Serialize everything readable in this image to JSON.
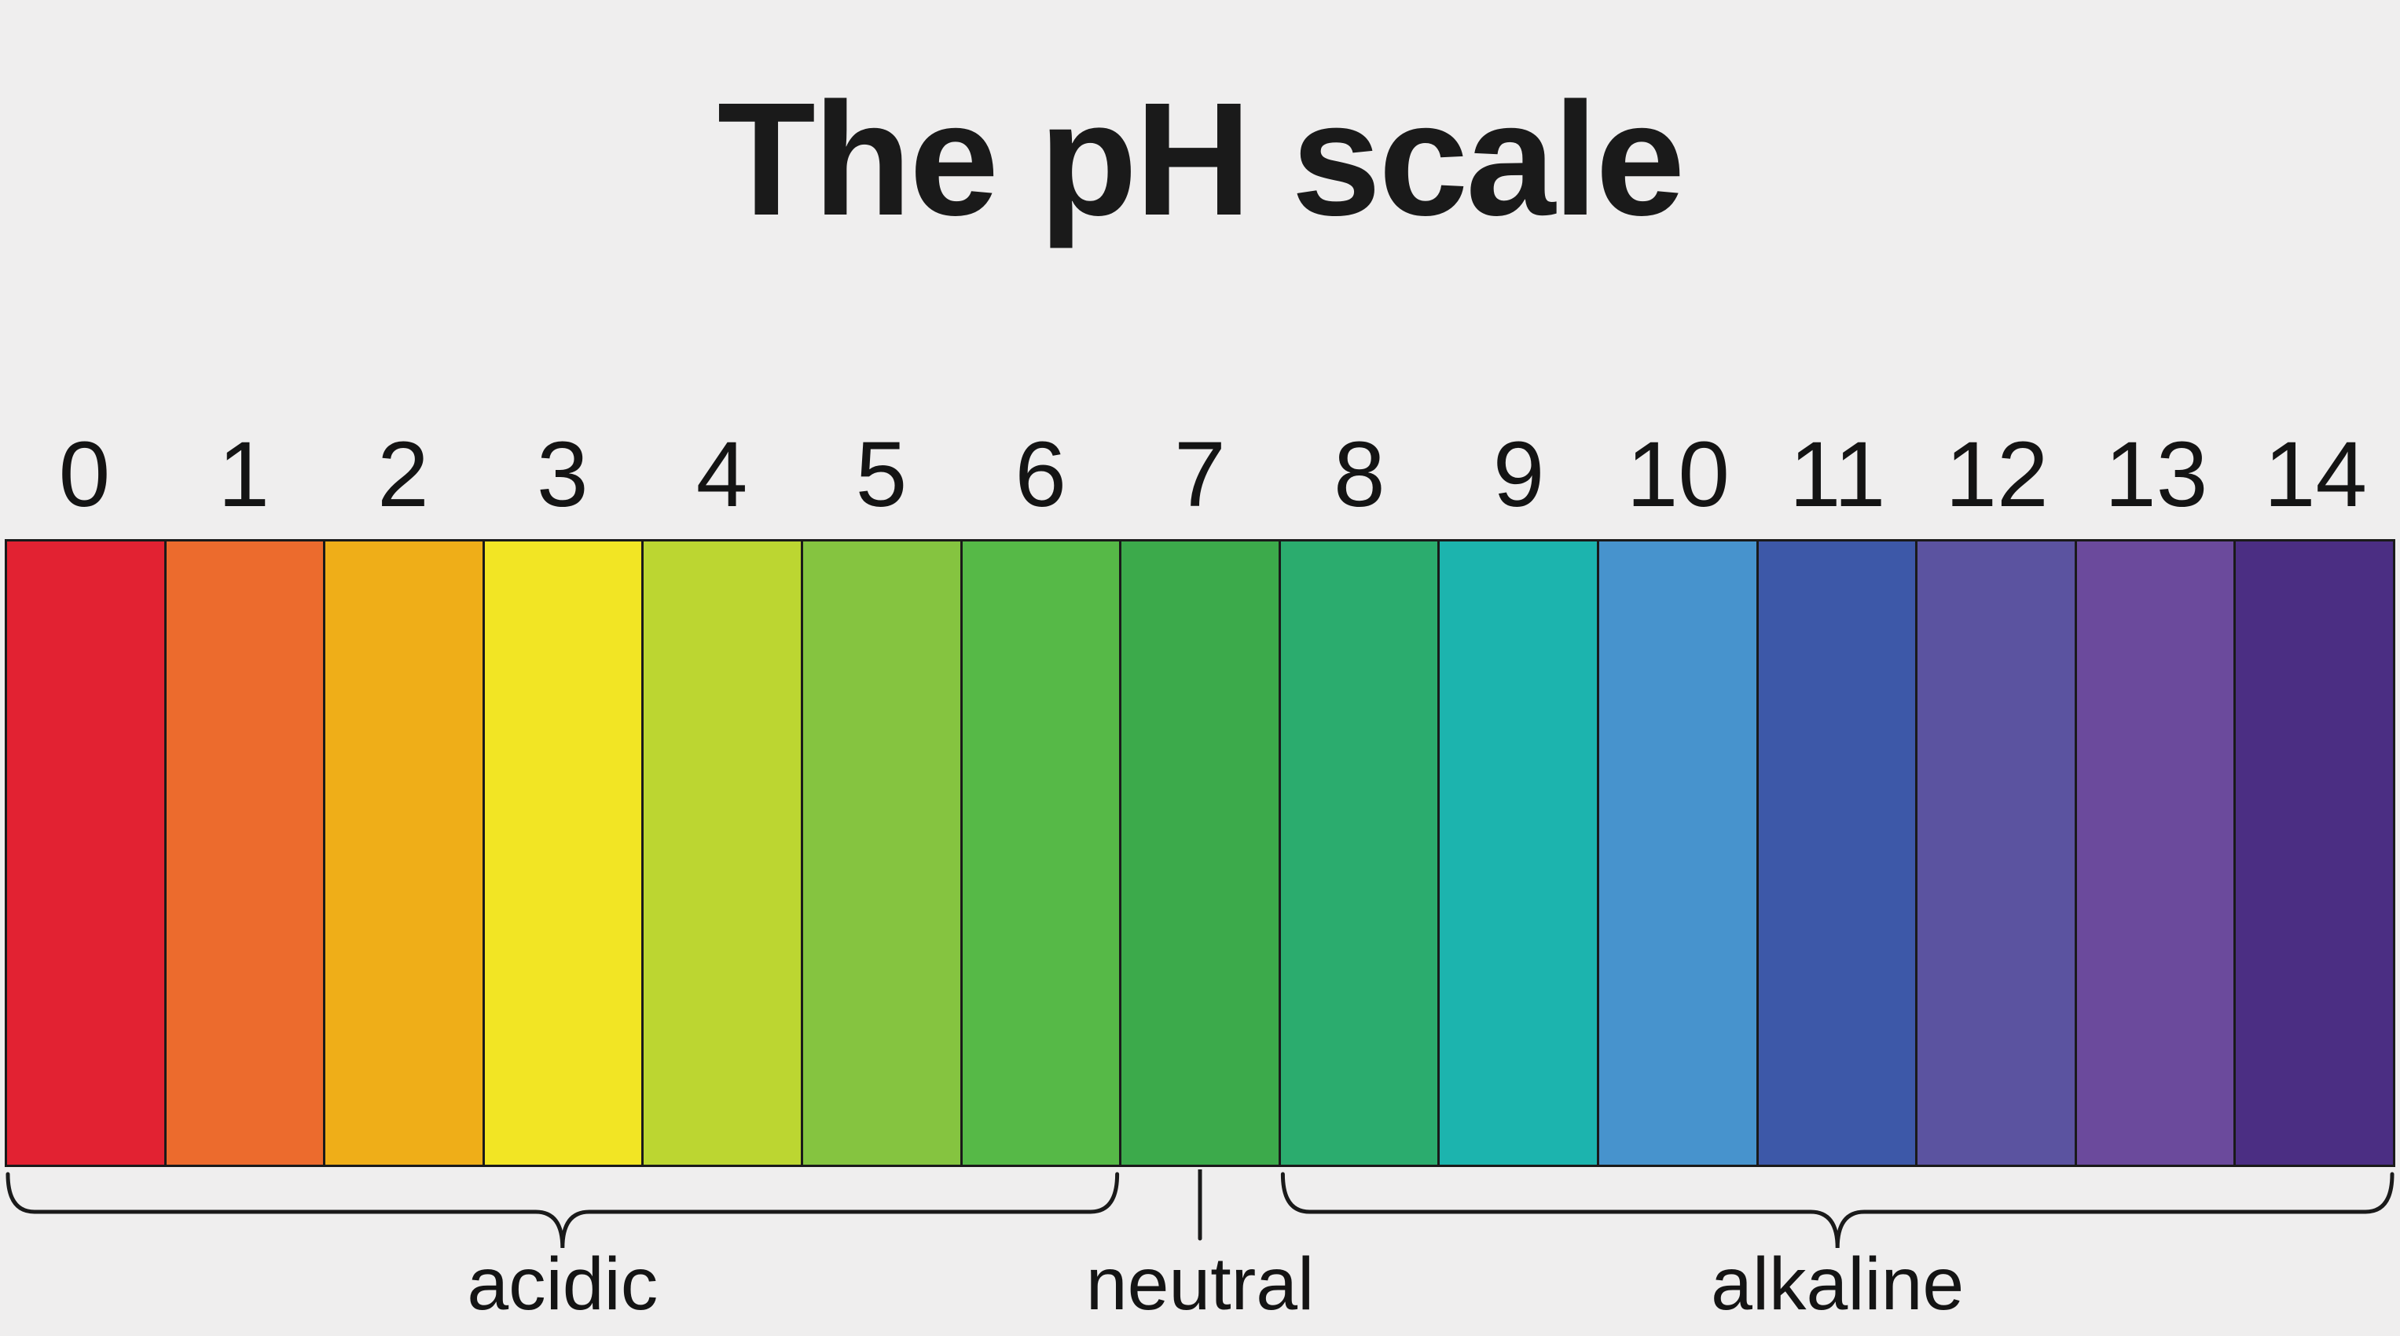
{
  "title": "The pH scale",
  "background_color": "#efeeee",
  "line_color": "#1a1a1a",
  "scale": {
    "segments": [
      {
        "label": "0",
        "color": "#e22232"
      },
      {
        "label": "1",
        "color": "#ec6b2d"
      },
      {
        "label": "2",
        "color": "#efae18"
      },
      {
        "label": "3",
        "color": "#f2e524"
      },
      {
        "label": "4",
        "color": "#bcd631"
      },
      {
        "label": "5",
        "color": "#85c440"
      },
      {
        "label": "6",
        "color": "#56b947"
      },
      {
        "label": "7",
        "color": "#3caa4b"
      },
      {
        "label": "8",
        "color": "#2bac6e"
      },
      {
        "label": "9",
        "color": "#1cb4ae"
      },
      {
        "label": "10",
        "color": "#4793cd"
      },
      {
        "label": "11",
        "color": "#3d58a8"
      },
      {
        "label": "12",
        "color": "#5b53a0"
      },
      {
        "label": "13",
        "color": "#6b4a9c"
      },
      {
        "label": "14",
        "color": "#4b2e83"
      }
    ]
  },
  "regions": [
    {
      "label": "acidic",
      "marker": "brace",
      "from": 0,
      "to": 6
    },
    {
      "label": "neutral",
      "marker": "tick",
      "from": 7,
      "to": 7
    },
    {
      "label": "alkaline",
      "marker": "brace",
      "from": 8,
      "to": 14
    }
  ]
}
